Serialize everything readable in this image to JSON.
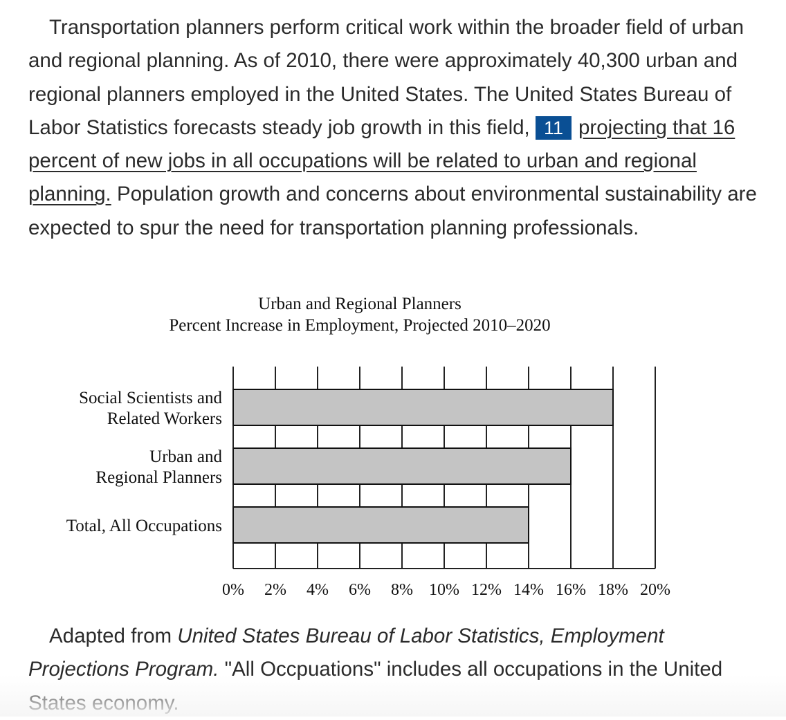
{
  "passage": {
    "text_before": "Transportation planners perform critical work within the broader field of urban and regional planning. As of 2010, there were approximately 40,300 urban and regional planners employed in the United States. The United States Bureau of Labor Statistics forecasts steady job growth in this field,",
    "question_number": "11",
    "underlined": "projecting that 16 percent of new jobs in all occupations will be related to urban and regional planning.",
    "text_after": "Population growth and concerns about environmental sustainability are expected to spur the need for transportation planning professionals."
  },
  "chart_data": {
    "type": "bar",
    "orientation": "horizontal",
    "title": "Urban and Regional Planners",
    "subtitle": "Percent Increase in Employment, Projected 2010–2020",
    "categories": [
      "Social Scientists and Related Workers",
      "Urban and Regional Planners",
      "Total, All Occupations"
    ],
    "category_lines": [
      [
        "Social Scientists and",
        "Related Workers"
      ],
      [
        "Urban and",
        "Regional Planners"
      ],
      [
        "Total, All Occupations"
      ]
    ],
    "values": [
      18,
      16,
      14
    ],
    "xlim": [
      0,
      20
    ],
    "x_ticks": [
      0,
      2,
      4,
      6,
      8,
      10,
      12,
      14,
      16,
      18,
      20
    ],
    "x_tick_labels": [
      "0%",
      "2%",
      "4%",
      "6%",
      "8%",
      "10%",
      "12%",
      "14%",
      "16%",
      "18%",
      "20%"
    ],
    "grid": true,
    "bar_color": "#c4c4c4"
  },
  "caption": {
    "prefix": "Adapted from ",
    "source": "United States Bureau of Labor Statistics, Employment Projections Program.",
    "suffix": " \"All Occpuations\" includes all occupations in the United States economy."
  }
}
